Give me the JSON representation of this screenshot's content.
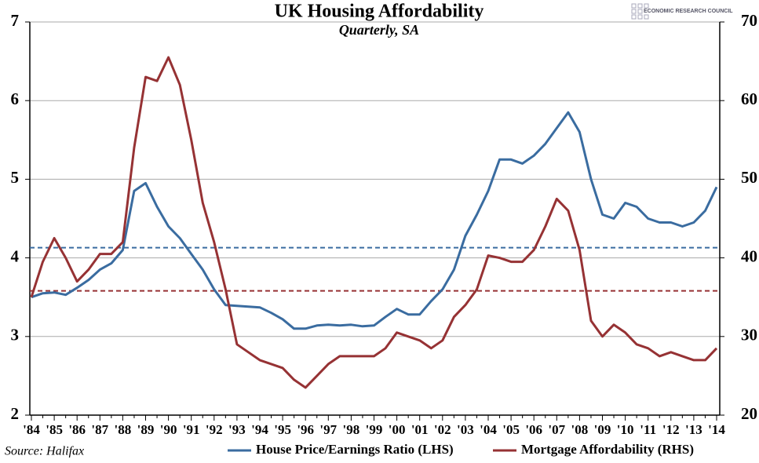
{
  "chart_data": {
    "type": "line",
    "title": "UK Housing Affordability",
    "subtitle": "Quarterly, SA",
    "source": "Source: Halifax",
    "logo_text": "ECONOMIC RESEARCH COUNCIL",
    "categories": [
      "'84",
      null,
      "'85",
      null,
      "'86",
      null,
      "'87",
      null,
      "'88",
      null,
      "'89",
      null,
      "'90",
      null,
      "'91",
      null,
      "'92",
      null,
      "'93",
      null,
      "'94",
      null,
      "'95",
      null,
      "'96",
      null,
      "'97",
      null,
      "'98",
      null,
      "'99",
      null,
      "'00",
      null,
      "'01",
      null,
      "'02",
      null,
      "'03",
      null,
      "'04",
      null,
      "'05",
      null,
      "'06",
      null,
      "'07",
      null,
      "'08",
      null,
      "'09",
      null,
      "'10",
      null,
      "'11",
      null,
      "'12",
      null,
      "'13",
      null,
      "'14"
    ],
    "series": [
      {
        "name": "House Price/Earnings Ratio (LHS)",
        "color": "#3a6ca0",
        "axis": "y",
        "values": [
          3.5,
          3.55,
          3.56,
          3.53,
          3.62,
          3.72,
          3.85,
          3.93,
          4.1,
          4.85,
          4.95,
          4.65,
          4.4,
          4.25,
          4.05,
          3.85,
          3.6,
          3.4,
          3.39,
          3.38,
          3.37,
          3.3,
          3.22,
          3.1,
          3.1,
          3.14,
          3.15,
          3.14,
          3.15,
          3.13,
          3.14,
          3.25,
          3.35,
          3.28,
          3.28,
          3.45,
          3.6,
          3.85,
          4.28,
          4.55,
          4.85,
          5.25,
          5.25,
          5.2,
          5.3,
          5.45,
          5.65,
          5.85,
          5.6,
          5.0,
          4.55,
          4.5,
          4.7,
          4.65,
          4.5,
          4.45,
          4.45,
          4.4,
          4.45,
          4.6,
          4.9
        ]
      },
      {
        "name": "Mortgage Affordability (RHS)",
        "color": "#963234",
        "axis": "y2",
        "values": [
          35,
          39.5,
          42.5,
          40,
          37,
          38.5,
          40.5,
          40.5,
          42,
          54,
          63,
          62.5,
          65.5,
          62,
          55,
          47,
          42,
          36,
          29,
          28,
          27,
          26.5,
          26,
          24.5,
          23.5,
          25,
          26.5,
          27.5,
          27.5,
          27.5,
          27.5,
          28.5,
          30.5,
          30,
          29.5,
          28.5,
          29.5,
          32.5,
          34,
          36,
          40.3,
          40,
          39.5,
          39.5,
          41,
          44,
          47.5,
          46,
          41,
          32,
          30,
          31.5,
          30.5,
          29,
          28.5,
          27.5,
          28,
          27.5,
          27,
          27,
          28.5
        ]
      }
    ],
    "reference_lines": [
      {
        "value": 4.13,
        "color": "#3a6ca0",
        "axis": "y"
      },
      {
        "value": 35.8,
        "color": "#963234",
        "axis": "y2"
      }
    ],
    "ylim": [
      2,
      7
    ],
    "yticks": [
      2,
      3,
      4,
      5,
      6,
      7
    ],
    "y2lim": [
      20,
      70
    ],
    "y2ticks": [
      20,
      30,
      40,
      50,
      60,
      70
    ],
    "grid": true
  }
}
